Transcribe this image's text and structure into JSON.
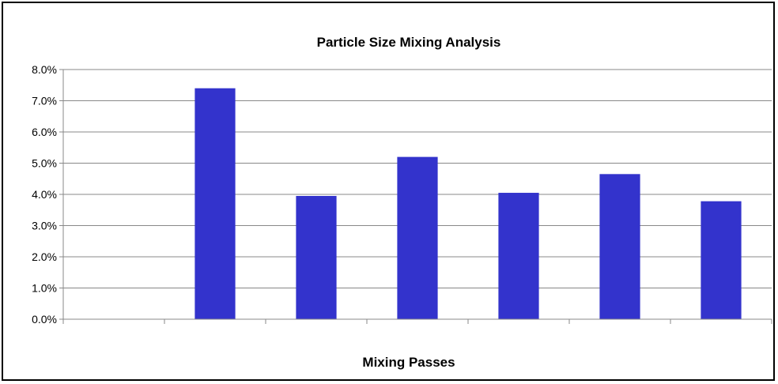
{
  "chart_data": {
    "type": "bar",
    "title": "Particle Size Mixing Analysis",
    "xlabel": "Mixing Passes",
    "ylabel": "",
    "categories": [
      "",
      "",
      "",
      "",
      "",
      "",
      ""
    ],
    "values": [
      0.0,
      7.4,
      3.95,
      5.2,
      4.05,
      4.65,
      3.78
    ],
    "ylim": [
      0,
      8
    ],
    "yticks": [
      "0.0%",
      "1.0%",
      "2.0%",
      "3.0%",
      "4.0%",
      "5.0%",
      "6.0%",
      "7.0%",
      "8.0%"
    ],
    "grid": true,
    "legend": "none",
    "bar_color": "#3333cc"
  }
}
